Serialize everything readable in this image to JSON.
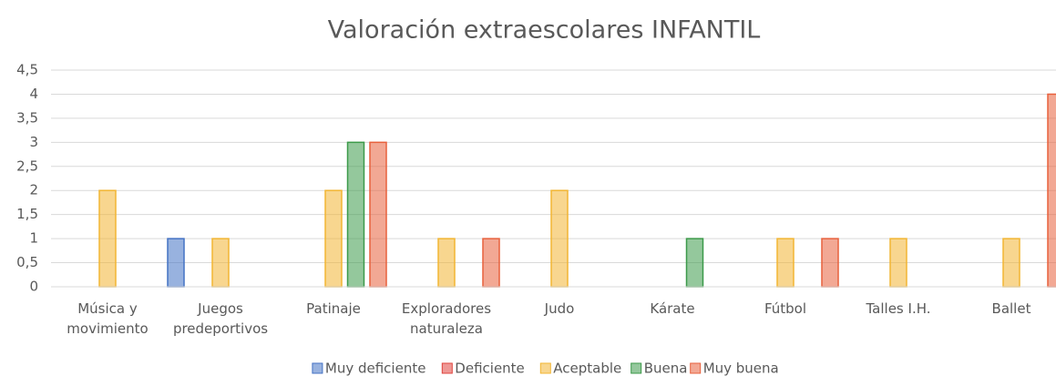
{
  "chart_data": {
    "type": "bar",
    "title": "Valoración  extraescolares INFANTIL",
    "categories": [
      "Música y movimiento",
      "Juegos predeportivos",
      "Patinaje",
      "Exploradores naturaleza",
      "Judo",
      "Kárate",
      "Fútbol",
      "Talles I.H.",
      "Ballet"
    ],
    "series": [
      {
        "name": "Muy deficiente",
        "color": "#4472c4",
        "values": [
          null,
          1,
          null,
          null,
          null,
          null,
          null,
          null,
          null
        ]
      },
      {
        "name": "Deficiente",
        "color": "#e0443e",
        "values": [
          null,
          null,
          null,
          null,
          null,
          null,
          null,
          null,
          null
        ]
      },
      {
        "name": "Aceptable",
        "color": "#f2b533",
        "values": [
          2,
          1,
          2,
          1,
          2,
          null,
          1,
          1,
          1
        ]
      },
      {
        "name": "Buena",
        "color": "#3c9a4a",
        "values": [
          null,
          null,
          3,
          null,
          null,
          1,
          null,
          null,
          null
        ]
      },
      {
        "name": "Muy buena",
        "color": "#e8603c",
        "values": [
          null,
          null,
          3,
          1,
          null,
          null,
          1,
          null,
          4
        ]
      }
    ],
    "ylim": [
      0,
      4.5
    ],
    "yticks": [
      0,
      {
        "value": 0.5,
        "label": "0,5"
      },
      1,
      {
        "value": 1.5,
        "label": "1,5"
      },
      2,
      {
        "value": 2.5,
        "label": "2,5"
      },
      3,
      {
        "value": 3.5,
        "label": "3,5"
      },
      4,
      {
        "value": 4.5,
        "label": "4,5"
      }
    ],
    "grid": true,
    "legend": "bottom"
  }
}
